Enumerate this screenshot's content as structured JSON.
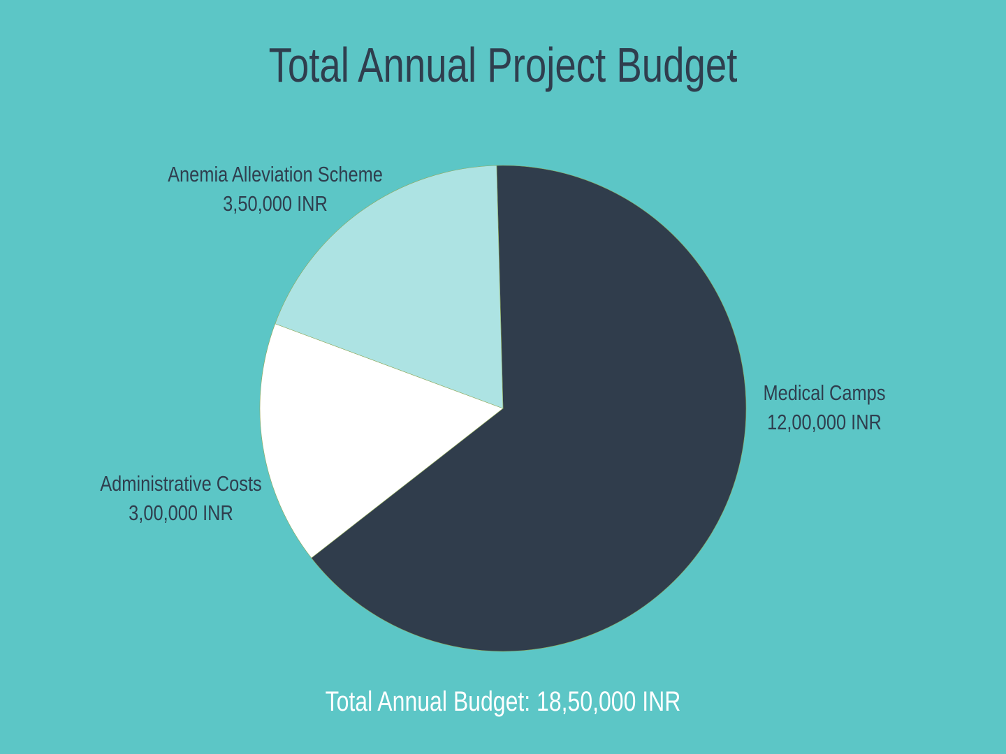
{
  "title": "Total Annual Project Budget",
  "footer": "Total Annual Budget: 18,50,000 INR",
  "colors": {
    "background": "#5cc6c6",
    "text_dark": "#2f3e4e",
    "text_light": "#ffffff"
  },
  "chart_data": {
    "type": "pie",
    "title": "Total Annual Project Budget",
    "slices": [
      {
        "name": "Medical Camps",
        "value": 1200000,
        "value_label": "12,00,000 INR",
        "color": "#303d4c"
      },
      {
        "name": "Administrative Costs",
        "value": 300000,
        "value_label": "3,00,000 INR",
        "color": "#ffffff"
      },
      {
        "name": "Anemia Alleviation Scheme",
        "value": 350000,
        "value_label": "3,50,000 INR",
        "color": "#ade3e3"
      }
    ],
    "total_label": "Total Annual Budget: 18,50,000 INR"
  }
}
